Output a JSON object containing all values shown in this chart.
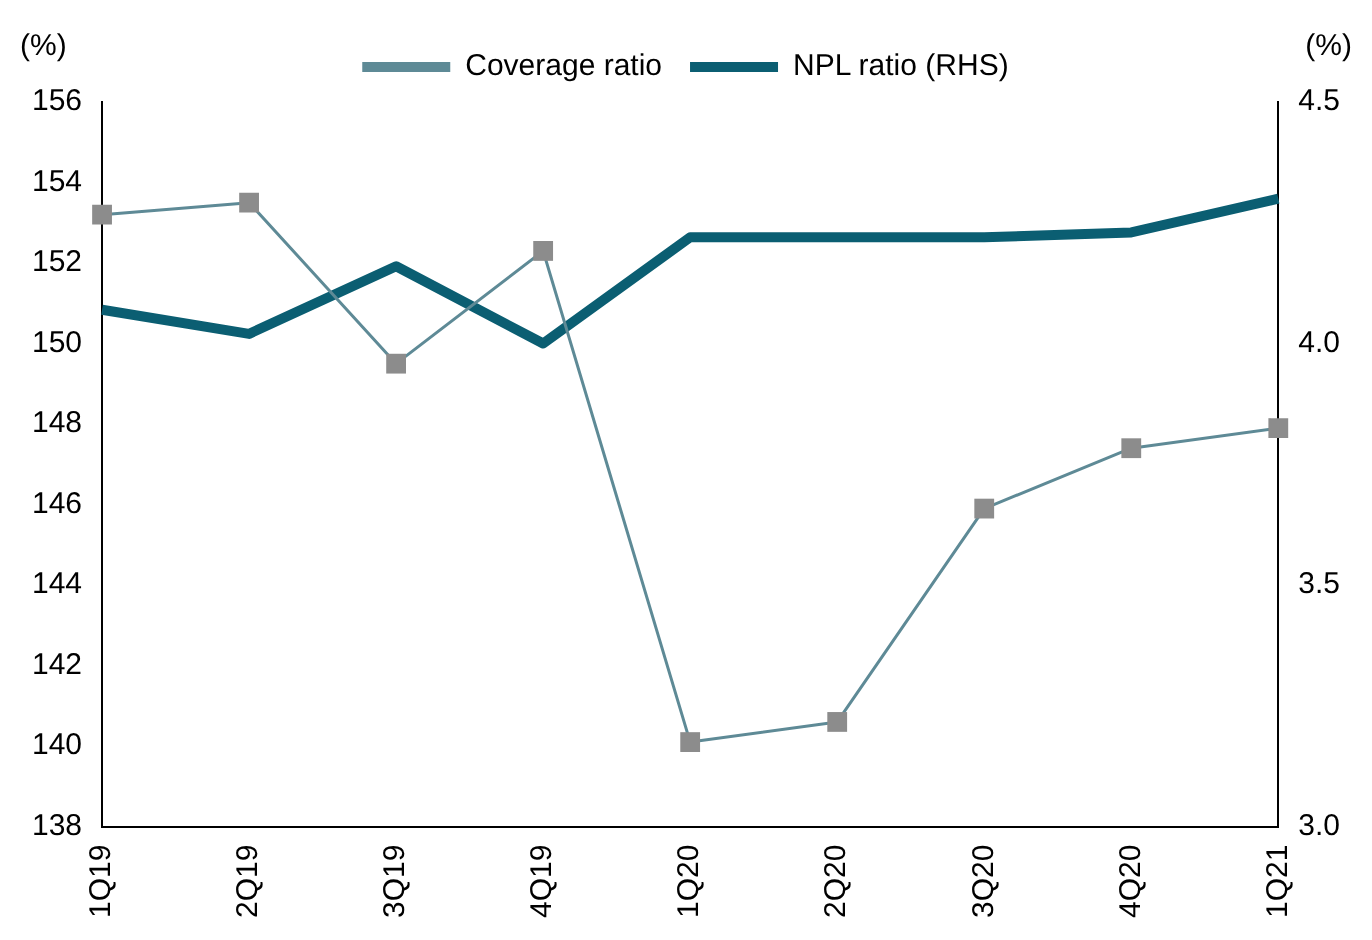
{
  "chart_data": {
    "type": "line",
    "ylabel": "(%)",
    "y2label": "(%)",
    "categories": [
      "1Q19",
      "2Q19",
      "3Q19",
      "4Q19",
      "1Q20",
      "2Q20",
      "3Q20",
      "4Q20",
      "1Q21"
    ],
    "series": [
      {
        "name": "Coverage ratio",
        "color": "#5e8a96",
        "marker": "square",
        "values": [
          153.2,
          153.5,
          149.5,
          152.3,
          140.1,
          140.6,
          145.9,
          147.4,
          147.9
        ]
      },
      {
        "name": "NPL ratio (RHS)",
        "color": "#0b5e72",
        "axis": "y2",
        "marker": "none",
        "values": [
          4.07,
          4.02,
          4.16,
          4.0,
          4.22,
          4.22,
          4.22,
          4.23,
          4.3
        ]
      }
    ],
    "ylim": [
      138,
      156
    ],
    "yticks": [
      138,
      140,
      142,
      144,
      146,
      148,
      150,
      152,
      154,
      156
    ],
    "y2lim": [
      3.0,
      4.5
    ],
    "y2ticks": [
      {
        "value": 3.0,
        "label": "3.0"
      },
      {
        "value": 3.5,
        "label": "3.5"
      },
      {
        "value": 4.0,
        "label": "4.0"
      },
      {
        "value": 4.5,
        "label": "4.5"
      }
    ],
    "grid": false,
    "legend": "top"
  }
}
